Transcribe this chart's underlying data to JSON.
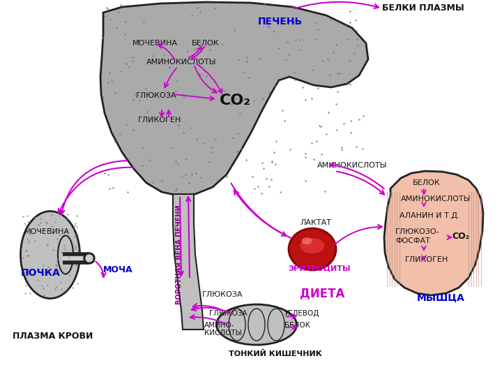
{
  "bg_color": "#ffffff",
  "liver_color": "#aaaaaa",
  "liver_edge": "#222222",
  "kidney_color": "#c0c0c0",
  "kidney_edge": "#222222",
  "muscle_color": "#f2bfaa",
  "muscle_edge": "#222222",
  "intestine_color": "#c0c0c0",
  "intestine_edge": "#222222",
  "rbc_color": "#bb1111",
  "portal_color": "#c0c0c0",
  "arrow_color": "#cc00cc",
  "label_blue": "#0000cc",
  "label_black": "#111111",
  "label_magenta": "#cc00cc",
  "plasma_label": "БЕЛКИ ПЛАЗМЫ",
  "pecen_label": "ПЕЧЕНЬ",
  "pochka_label": "ПОЧКА",
  "mishca_label": "МЫШЦА",
  "kishechnik_label": "ТОНКИЙ КИШЕЧНИК",
  "eritrocity_label": "ЭРИТРОЦИТЫ",
  "dieta_label": "ДИЕТА",
  "plazma_label": "ПЛАЗМА КРОВИ",
  "mocha_label": "МОЧА",
  "portal_label": "ВОРОТНАЯ ВЕНА ПЕЧЕНИ",
  "laktat_label": "ЛАКТАТ",
  "aminok_liver_label": "АМИНОКИСЛОТЫ",
  "mocevina_liver": "МОЧЕВИНА",
  "belok_liver": "БЕЛОК",
  "glyukoza_liver": "ГЛЮКОЗА",
  "glikogen_liver": "ГЛИКОГЕН",
  "co2_liver": "CO₂",
  "aminok_right": "АМИНОКИСЛОТЫ",
  "glyukoza_portal": "ГЛЮКОЗА",
  "mocevina_kidney": "МОЧЕВИНА"
}
